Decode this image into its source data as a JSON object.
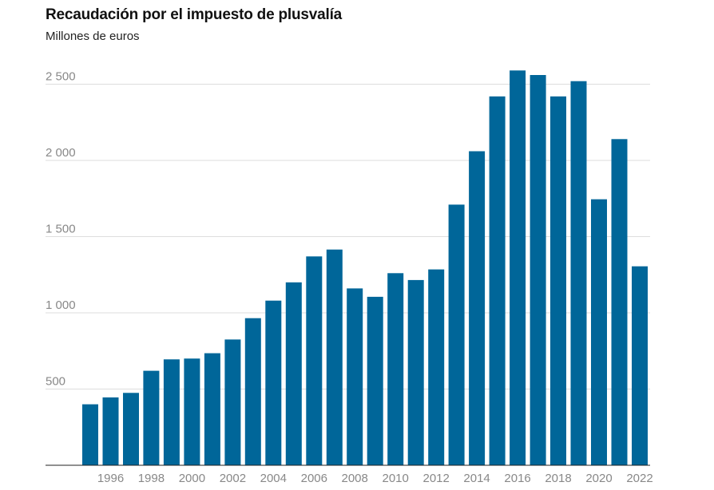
{
  "chart_data": {
    "type": "bar",
    "title": "Recaudación por el impuesto de plusvalía",
    "subtitle": "Millones de euros",
    "xlabel": "",
    "ylabel": "",
    "categories": [
      1995,
      1996,
      1997,
      1998,
      1999,
      2000,
      2001,
      2002,
      2003,
      2004,
      2005,
      2006,
      2007,
      2008,
      2009,
      2010,
      2011,
      2012,
      2013,
      2014,
      2015,
      2016,
      2017,
      2018,
      2019,
      2020,
      2021,
      2022
    ],
    "x_tick_labels": [
      "1996",
      "1998",
      "2000",
      "2002",
      "2004",
      "2006",
      "2008",
      "2010",
      "2012",
      "2014",
      "2016",
      "2018",
      "2020",
      "2022"
    ],
    "values": [
      400,
      445,
      475,
      620,
      695,
      700,
      735,
      825,
      965,
      1080,
      1200,
      1370,
      1415,
      1160,
      1105,
      1260,
      1215,
      1285,
      1710,
      2060,
      2420,
      2590,
      2560,
      2420,
      2520,
      1745,
      2140,
      1305
    ],
    "y_ticks": [
      500,
      1000,
      1500,
      2000,
      2500
    ],
    "y_tick_labels": [
      "500",
      "1 000",
      "1 500",
      "2 000",
      "2 500"
    ],
    "ylim": [
      0,
      2700
    ],
    "grid": true,
    "bar_color": "#006699",
    "grid_color": "#dddddd",
    "axis_color": "#222222",
    "tick_label_color": "#888888"
  }
}
